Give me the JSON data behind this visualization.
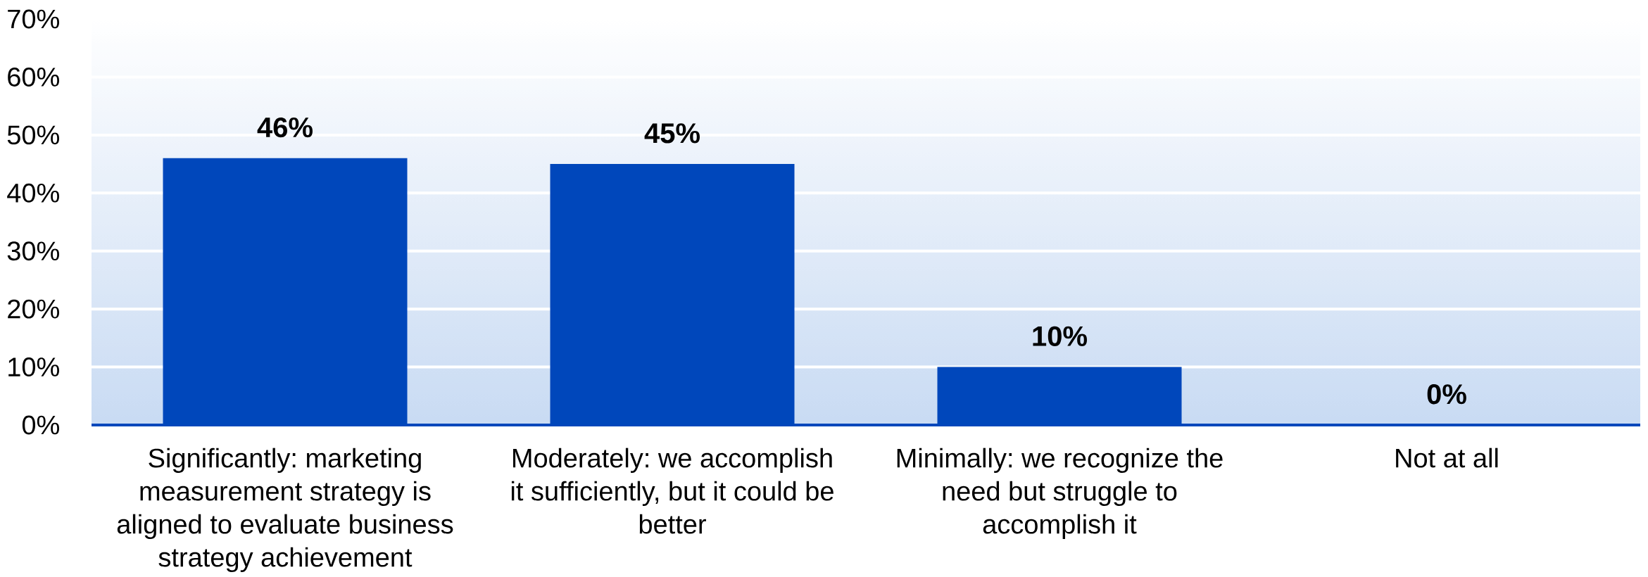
{
  "chart_data": {
    "type": "bar",
    "categories": [
      "Significantly: marketing measurement strategy is aligned to evaluate business strategy achievement",
      "Moderately: we accomplish it sufficiently, but it could be better",
      "Minimally: we recognize the need but struggle to accomplish it",
      "Not at all"
    ],
    "values": [
      46,
      45,
      10,
      0
    ],
    "color": "#0047BB",
    "value_labels": [
      "46%",
      "45%",
      "10%",
      "0%"
    ],
    "ylim": [
      0,
      70
    ],
    "yticks": [
      {
        "value": 0,
        "label": "0%"
      },
      {
        "value": 10,
        "label": "10%"
      },
      {
        "value": 20,
        "label": "20%"
      },
      {
        "value": 30,
        "label": "30%"
      },
      {
        "value": 40,
        "label": "40%"
      },
      {
        "value": 50,
        "label": "50%"
      },
      {
        "value": 60,
        "label": "60%"
      },
      {
        "value": 70,
        "label": "70%"
      }
    ],
    "grid": "y"
  }
}
